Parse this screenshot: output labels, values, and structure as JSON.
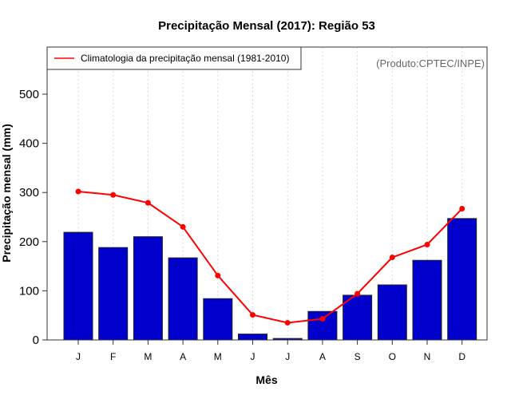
{
  "chart_data": {
    "type": "bar",
    "title": "Precipitação Mensal (2017): Região 53",
    "xlabel": "Mês",
    "ylabel": "Precipitação mensal (mm)",
    "ylim": [
      0,
      560
    ],
    "yticks": [
      0,
      100,
      200,
      300,
      400,
      500
    ],
    "categories": [
      "J",
      "F",
      "M",
      "A",
      "M",
      "J",
      "J",
      "A",
      "S",
      "O",
      "N",
      "D"
    ],
    "grid": "vertical dotted at categories",
    "series": [
      {
        "name": "Precipitação mensal 2017",
        "type": "bar",
        "color": "#0000cc",
        "values": [
          219,
          188,
          210,
          167,
          84,
          12,
          3,
          58,
          91,
          112,
          162,
          247
        ]
      },
      {
        "name": "Climatologia da precipitação mensal (1981-2010)",
        "type": "line",
        "color": "#ff0000",
        "values": [
          302,
          295,
          279,
          230,
          131,
          51,
          35,
          43,
          94,
          168,
          194,
          267
        ]
      }
    ],
    "legend": {
      "placement": "top-left",
      "entries": [
        "Climatologia da precipitação mensal (1981-2010)"
      ]
    },
    "annotation": "(Produto:CPTEC/INPE)"
  }
}
